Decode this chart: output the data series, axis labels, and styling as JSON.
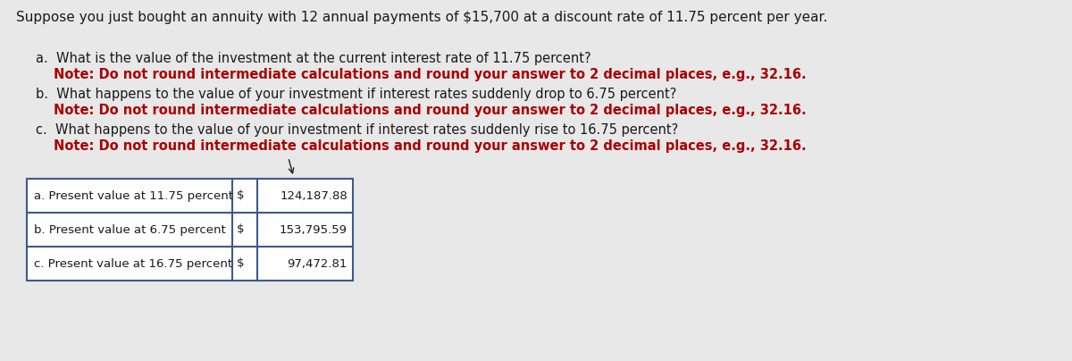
{
  "background_color": "#e8e8e8",
  "content_bg": "#f5f5f5",
  "title_text": "Suppose you just bought an annuity with 12 annual payments of $15,700 at a discount rate of 11.75 percent per year.",
  "title_fontsize": 11.0,
  "title_color": "#1a1a1a",
  "questions": [
    {
      "label": "a.",
      "main_text": "What is the value of the investment at the current interest rate of 11.75 percent?",
      "note_text": "Note: Do not round intermediate calculations and round your answer to 2 decimal places, e.g., 32.16.",
      "main_color": "#1a1a1a",
      "note_color": "#aa0000"
    },
    {
      "label": "b.",
      "main_text": "What happens to the value of your investment if interest rates suddenly drop to 6.75 percent?",
      "note_text": "Note: Do not round intermediate calculations and round your answer to 2 decimal places, e.g., 32.16.",
      "main_color": "#1a1a1a",
      "note_color": "#aa0000"
    },
    {
      "label": "c.",
      "main_text": "What happens to the value of your investment if interest rates suddenly rise to 16.75 percent?",
      "note_text": "Note: Do not round intermediate calculations and round your answer to 2 decimal places, e.g., 32.16.",
      "main_color": "#1a1a1a",
      "note_color": "#aa0000"
    }
  ],
  "table_rows": [
    {
      "label": "a. Present value at 11.75 percent",
      "currency": "$",
      "value": "124,187.88"
    },
    {
      "label": "b. Present value at 6.75 percent",
      "currency": "$",
      "value": "153,795.59"
    },
    {
      "label": "c. Present value at 16.75 percent",
      "currency": "$",
      "value": "97,472.81"
    }
  ],
  "table_border_color": "#3d5a8a",
  "table_fontsize": 9.5,
  "question_fontsize": 10.5,
  "note_fontsize": 10.5
}
